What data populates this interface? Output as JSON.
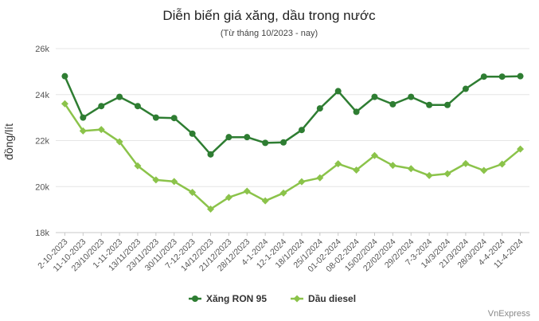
{
  "chart_data": {
    "type": "line",
    "title": "Diễn biến giá xăng, dầu trong nước",
    "subtitle": "(Từ tháng 10/2023 - nay)",
    "ylabel": "đồng/lít",
    "xlabel": "",
    "ylim": [
      18000,
      26000
    ],
    "yticks": [
      "18k",
      "20k",
      "22k",
      "24k",
      "26k"
    ],
    "grid": true,
    "legend_position": "bottom",
    "categories": [
      "2-10-2023",
      "11-10-2023",
      "23/10/2023",
      "1-11-2023",
      "13/11/2023",
      "23/11/2023",
      "30/11/2023",
      "7-12-2023",
      "14/12/2023",
      "21/12/2023",
      "28/12/2023",
      "4-1-2024",
      "12-1-2024",
      "18/1/2024",
      "25/1/2024",
      "01-02-2024",
      "08-02-2024",
      "15/02/2024",
      "22/02/2024",
      "29/2/2024",
      "7-3-2024",
      "14/3/2024",
      "21/3/2024",
      "28/3/2024",
      "4-4-2024",
      "11-4-2024"
    ],
    "series": [
      {
        "name": "Xăng RON 95",
        "color": "#2e7d32",
        "values": [
          24800,
          23000,
          23500,
          23900,
          23500,
          23000,
          22980,
          22300,
          21400,
          22150,
          22150,
          21900,
          21920,
          22460,
          23400,
          24150,
          23250,
          23900,
          23580,
          23900,
          23550,
          23550,
          24250,
          24780,
          24780,
          24800
        ]
      },
      {
        "name": "Dầu diesel",
        "color": "#8bc34a",
        "values": [
          23600,
          22420,
          22480,
          21950,
          20900,
          20290,
          20220,
          19750,
          19020,
          19530,
          19800,
          19380,
          19720,
          20210,
          20380,
          20990,
          20720,
          21350,
          20920,
          20780,
          20480,
          20560,
          21000,
          20700,
          20980,
          21630
        ]
      }
    ]
  },
  "credit": "VnExpress"
}
